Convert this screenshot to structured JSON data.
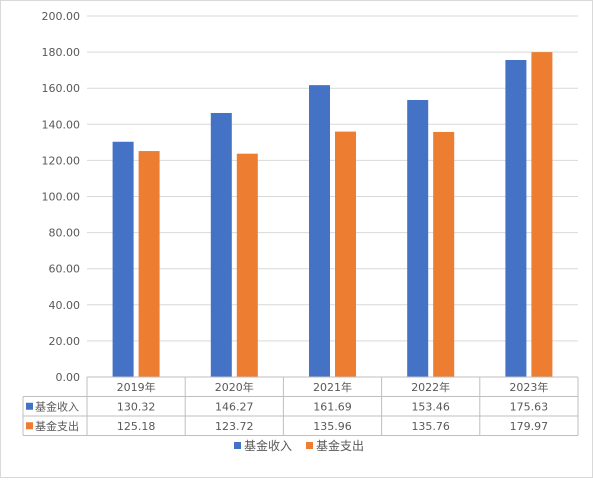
{
  "chart_data": {
    "type": "bar",
    "title": "",
    "xlabel": "",
    "ylabel": "",
    "categories": [
      "2019年",
      "2020年",
      "2021年",
      "2022年",
      "2023年"
    ],
    "series": [
      {
        "name": "基金收入",
        "color": "#4472C4",
        "values": [
          130.32,
          146.27,
          161.69,
          153.46,
          175.63
        ]
      },
      {
        "name": "基金支出",
        "color": "#ED7D31",
        "values": [
          125.18,
          123.72,
          135.96,
          135.76,
          179.97
        ]
      }
    ],
    "ylim": [
      0,
      200
    ],
    "yticks": [
      "0.00",
      "20.00",
      "40.00",
      "60.00",
      "80.00",
      "100.00",
      "120.00",
      "140.00",
      "160.00",
      "180.00",
      "200.00"
    ],
    "data_table": {
      "rows": [
        {
          "label": "基金收入",
          "values": [
            "130.32",
            "146.27",
            "161.69",
            "153.46",
            "175.63"
          ]
        },
        {
          "label": "基金支出",
          "values": [
            "125.18",
            "123.72",
            "135.96",
            "135.76",
            "179.97"
          ]
        }
      ]
    },
    "legend": {
      "position": "bottom",
      "items": [
        "基金收入",
        "基金支出"
      ]
    },
    "grid": true
  }
}
